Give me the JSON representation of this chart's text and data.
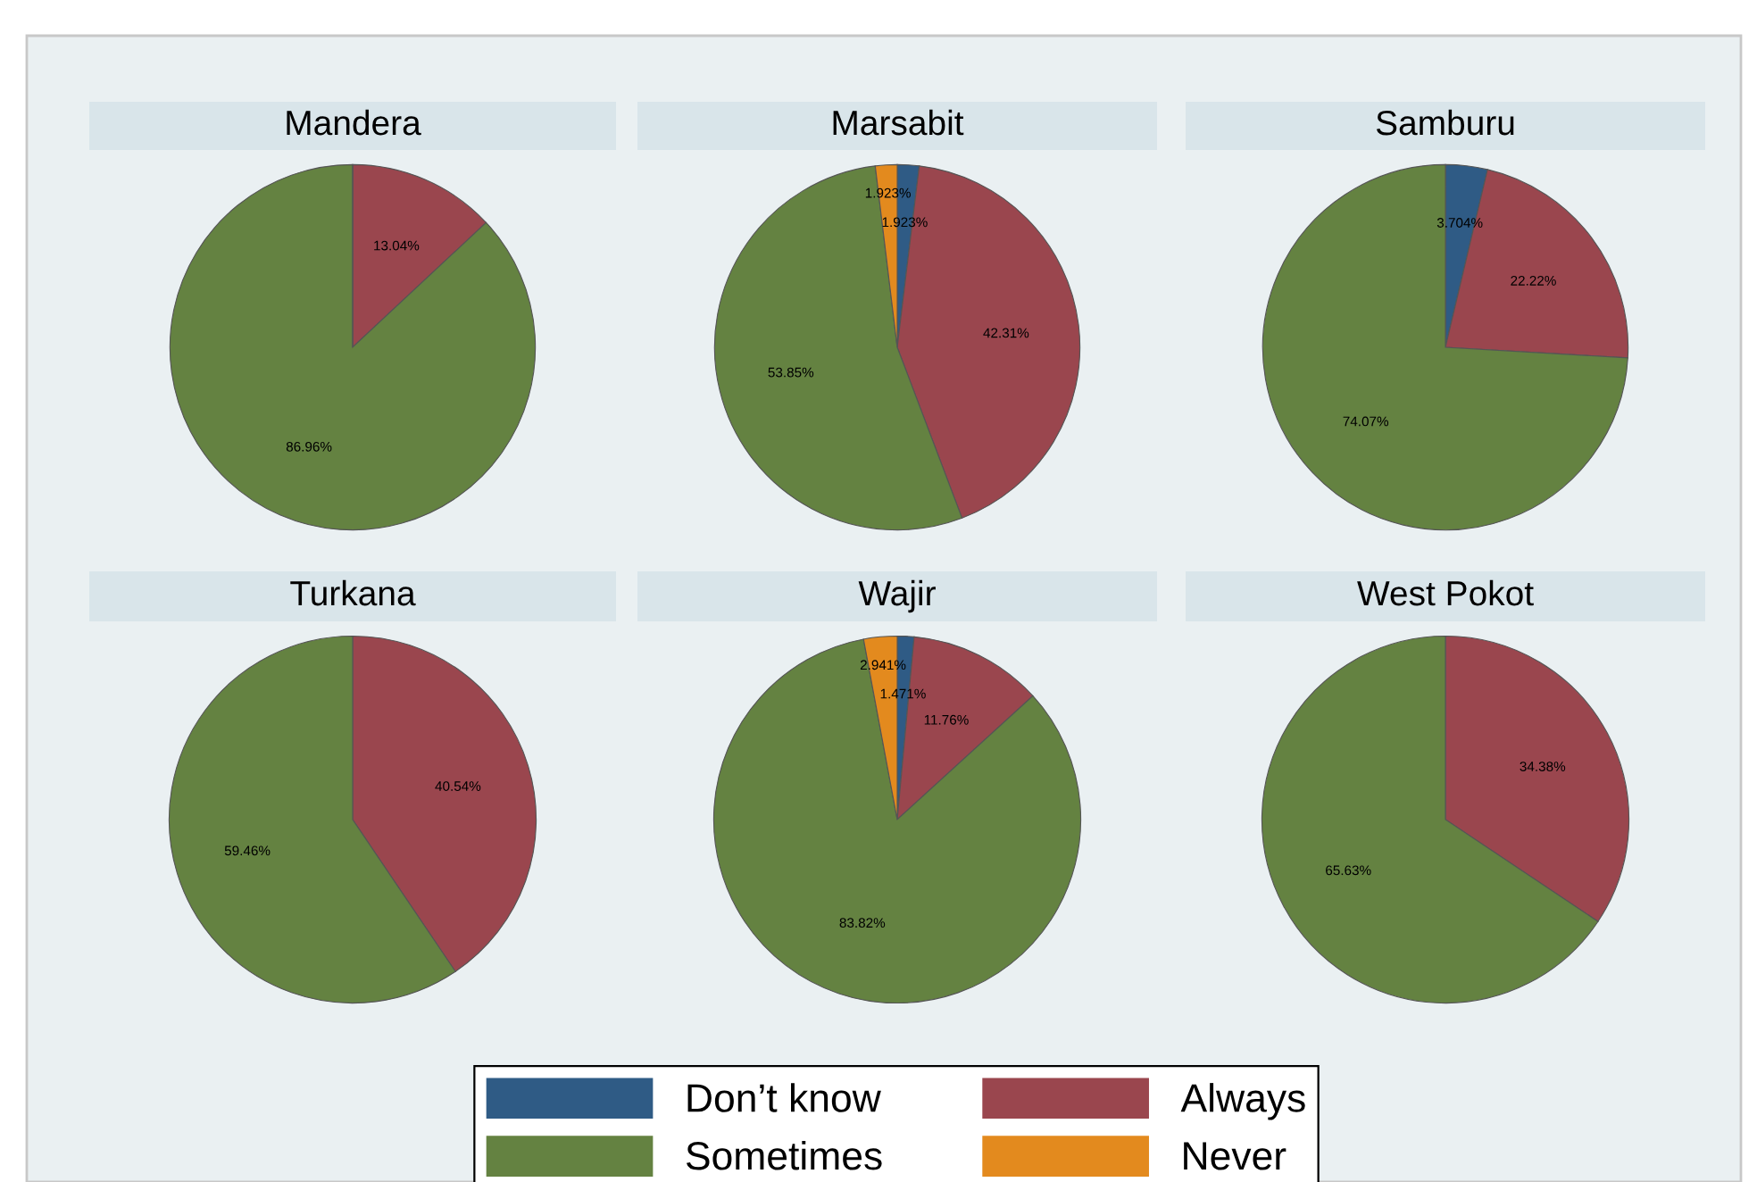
{
  "chart_data": [
    {
      "type": "pie",
      "title": "Mandera",
      "categories": [
        "Don’t know",
        "Always",
        "Sometimes",
        "Never"
      ],
      "values": [
        0,
        13.04,
        86.96,
        0
      ],
      "value_labels": [
        null,
        "13.04%",
        "86.96%",
        null
      ],
      "colors": [
        "#2f5b85",
        "#9a464e",
        "#648241",
        "#e38a1e"
      ],
      "legend": "bottom"
    },
    {
      "type": "pie",
      "title": "Marsabit",
      "categories": [
        null,
        null,
        null,
        null
      ],
      "values": [
        1.923,
        42.31,
        53.85,
        1.923
      ],
      "value_labels": [
        "1.923%",
        "42.31%",
        "53.85%",
        "1.923%"
      ],
      "colors": [
        "#2f5b85",
        "#9a464e",
        "#648241",
        "#e38a1e"
      ]
    },
    {
      "type": "pie",
      "title": "Samburu",
      "categories": [
        null,
        null,
        null
      ],
      "values": [
        3.704,
        22.22,
        74.07
      ],
      "value_labels": [
        "3.704%",
        "22.22%",
        "74.07%"
      ],
      "colors": [
        "#2f5b85",
        "#9a464e",
        "#648241"
      ]
    },
    {
      "type": "pie",
      "title": "Turkana",
      "categories": [
        null,
        null
      ],
      "values": [
        40.54,
        59.46
      ],
      "value_labels": [
        "40.54%",
        "59.46%"
      ],
      "colors": [
        "#9a464e",
        "#648241"
      ]
    },
    {
      "type": "pie",
      "title": "Wajir",
      "categories": [
        null,
        null,
        null,
        null
      ],
      "values": [
        1.471,
        11.76,
        83.82,
        2.941
      ],
      "value_labels": [
        "1.471%",
        "11.76%",
        "83.82%",
        "2.941%"
      ],
      "colors": [
        "#2f5b85",
        "#9a464e",
        "#648241",
        "#e38a1e"
      ]
    },
    {
      "type": "pie",
      "title": "West Pokot",
      "categories": [
        null,
        null
      ],
      "values": [
        34.38,
        65.63
      ],
      "value_labels": [
        "34.38%",
        "65.63%"
      ],
      "colors": [
        "#9a464e",
        "#648241"
      ]
    }
  ]
}
